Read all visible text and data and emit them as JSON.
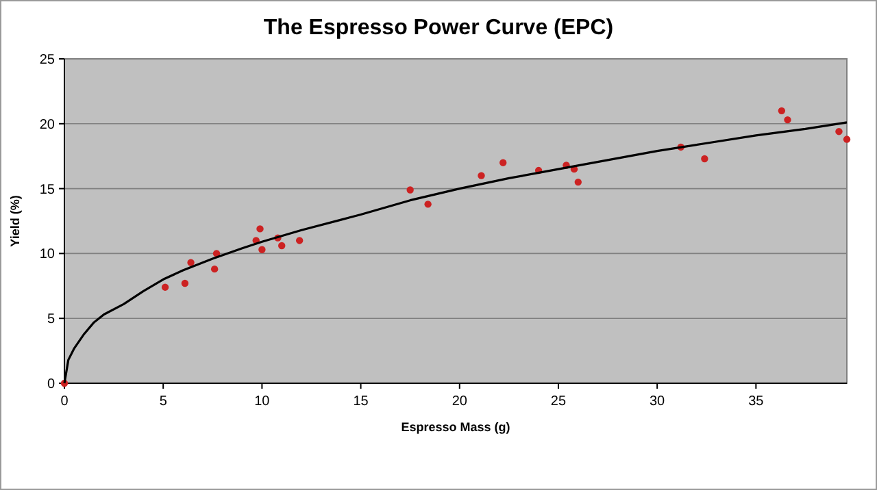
{
  "chart_data": {
    "type": "scatter",
    "title": "The Espresso Power Curve (EPC)",
    "xlabel": "Espresso Mass (g)",
    "ylabel": "Yield (%)",
    "xlim": [
      0,
      39.6
    ],
    "ylim": [
      0,
      25
    ],
    "xticks": [
      0,
      5,
      10,
      15,
      20,
      25,
      30,
      35
    ],
    "yticks": [
      0,
      5,
      10,
      15,
      20,
      25
    ],
    "grid": "y",
    "marker": "circle",
    "series": [
      {
        "color": "#cc2222",
        "x": [
          0,
          5.1,
          6.1,
          6.4,
          7.6,
          7.7,
          9.7,
          9.9,
          10.0,
          10.8,
          11.0,
          11.9,
          17.5,
          18.4,
          21.1,
          22.2,
          24.0,
          25.4,
          25.8,
          26.0,
          31.2,
          32.4,
          36.3,
          36.6,
          39.2,
          39.6
        ],
        "values": [
          0,
          7.4,
          7.7,
          9.3,
          8.8,
          10.0,
          11.0,
          11.9,
          10.3,
          11.2,
          10.6,
          11.0,
          14.9,
          13.8,
          16.0,
          17.0,
          16.4,
          16.8,
          16.5,
          15.5,
          18.2,
          17.3,
          21.0,
          20.3,
          19.4,
          18.8
        ]
      },
      {
        "type": "line",
        "color": "#000000",
        "marker": "none",
        "x": [
          0,
          0.2,
          0.5,
          1,
          1.5,
          2,
          3,
          4,
          5,
          6,
          7.5,
          9,
          10,
          12,
          14,
          15,
          17.5,
          20,
          22.5,
          25,
          27.5,
          30,
          32.5,
          35,
          37.5,
          39.6
        ],
        "values": [
          0,
          1.8,
          2.7,
          3.8,
          4.7,
          5.3,
          6.1,
          7.1,
          8.0,
          8.7,
          9.6,
          10.4,
          10.9,
          11.8,
          12.6,
          13.0,
          14.1,
          15.0,
          15.8,
          16.5,
          17.2,
          17.9,
          18.5,
          19.1,
          19.6,
          20.1
        ]
      }
    ]
  }
}
